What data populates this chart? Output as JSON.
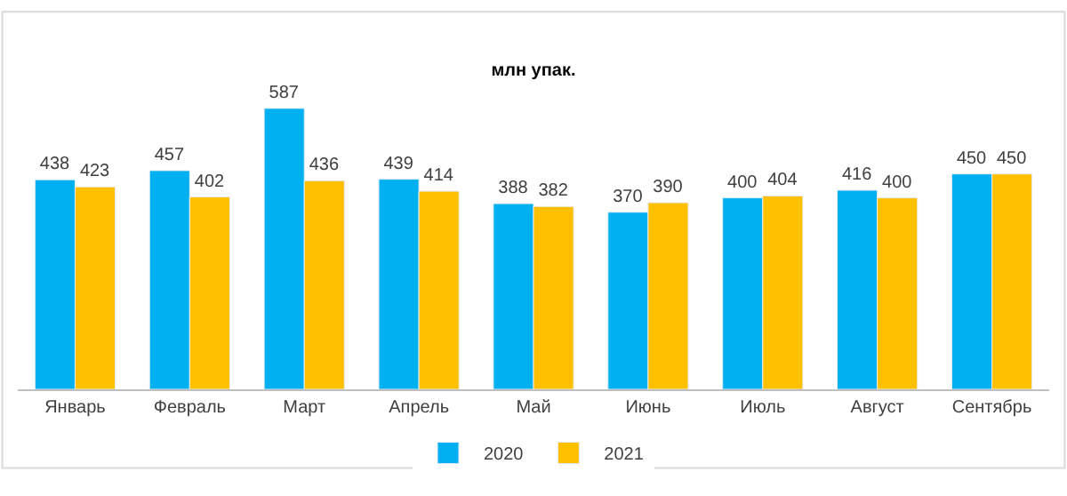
{
  "chart_data": {
    "type": "bar",
    "title": "млн упак.",
    "categories": [
      "Январь",
      "Февраль",
      "Март",
      "Апрель",
      "Май",
      "Июнь",
      "Июль",
      "Август",
      "Сентябрь"
    ],
    "series": [
      {
        "name": "2020",
        "color": "#00b0f0",
        "values": [
          438,
          457,
          587,
          439,
          388,
          370,
          400,
          416,
          450
        ]
      },
      {
        "name": "2021",
        "color": "#ffc000",
        "values": [
          423,
          402,
          436,
          414,
          382,
          390,
          404,
          400,
          450
        ]
      }
    ],
    "data_labels": true,
    "legend": "bottom"
  }
}
